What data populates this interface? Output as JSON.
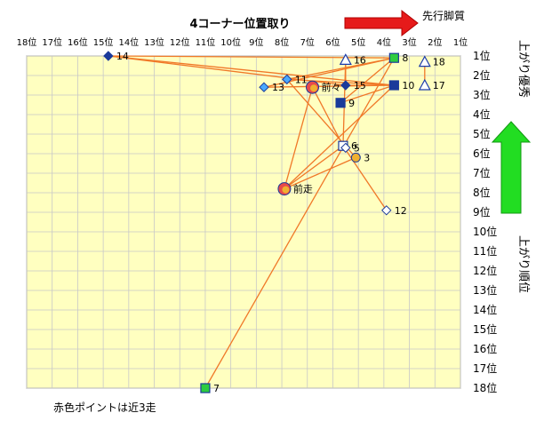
{
  "chart_data": {
    "type": "scatter",
    "title": "4コーナー位置取り",
    "xlabel_top_right": "先行脚質",
    "ylabel_right_top": "上がり優秀",
    "ylabel_right_bottom": "上がり順位",
    "footnote": "赤色ポイントは近3走",
    "x_axis": {
      "tick_labels": [
        "18位",
        "17位",
        "16位",
        "15位",
        "14位",
        "13位",
        "12位",
        "11位",
        "10位",
        "9位",
        "8位",
        "7位",
        "6位",
        "5位",
        "4位",
        "3位",
        "2位",
        "1位"
      ],
      "range": [
        18,
        1
      ],
      "meaning": "4コーナー位置取り順位"
    },
    "y_axis": {
      "tick_labels": [
        "1位",
        "2位",
        "3位",
        "4位",
        "5位",
        "6位",
        "7位",
        "8位",
        "9位",
        "10位",
        "11位",
        "12位",
        "13位",
        "14位",
        "15位",
        "16位",
        "17位",
        "18位"
      ],
      "range": [
        1,
        18
      ],
      "meaning": "上がり順位"
    },
    "grid": true,
    "colors": {
      "plot_bg": "#ffffc0",
      "grid": "#c8c8c8",
      "line": "#f07828",
      "diamond_fill": "#4aa8ff",
      "diamond_dark": "#1a3a9a",
      "square_navy": "#1a3a9a",
      "square_green": "#2ecc40",
      "triangle_stroke": "#1a3aaa",
      "recent_outer": "#e84a4a",
      "recent_inner": "#f0b030",
      "arrow_red": "#e61a1a",
      "arrow_green": "#22dd22"
    },
    "points": [
      {
        "label": "14",
        "x": 14.8,
        "y": 1,
        "shape": "diamond",
        "fill": "#1a3a9a"
      },
      {
        "label": "16",
        "x": 5.5,
        "y": 1.2,
        "shape": "triangle",
        "fill": "none"
      },
      {
        "label": "8",
        "x": 3.6,
        "y": 1.1,
        "shape": "square",
        "fill": "#2ecc40"
      },
      {
        "label": "18",
        "x": 2.4,
        "y": 1.3,
        "shape": "triangle",
        "fill": "none"
      },
      {
        "label": "11",
        "x": 7.8,
        "y": 2.2,
        "shape": "diamond",
        "fill": "#4aa8ff"
      },
      {
        "label": "13",
        "x": 8.7,
        "y": 2.6,
        "shape": "diamond",
        "fill": "#4aa8ff"
      },
      {
        "label": "前々",
        "x": 6.8,
        "y": 2.6,
        "shape": "recent",
        "fill": "#e84a4a"
      },
      {
        "label": "15",
        "x": 5.5,
        "y": 2.5,
        "shape": "diamond",
        "fill": "#1a3a9a"
      },
      {
        "label": "10",
        "x": 3.6,
        "y": 2.5,
        "shape": "square",
        "fill": "#1a3a9a"
      },
      {
        "label": "17",
        "x": 2.4,
        "y": 2.5,
        "shape": "triangle",
        "fill": "none"
      },
      {
        "label": "9",
        "x": 5.7,
        "y": 3.4,
        "shape": "square",
        "fill": "#1a3a9a"
      },
      {
        "label": "6",
        "x": 5.6,
        "y": 5.6,
        "shape": "square",
        "fill": "none"
      },
      {
        "label": "5",
        "x": 5.5,
        "y": 5.7,
        "shape": "diamond",
        "fill": "none"
      },
      {
        "label": "3",
        "x": 5.1,
        "y": 6.2,
        "shape": "circle",
        "fill": "#f0b030"
      },
      {
        "label": "前走",
        "x": 7.9,
        "y": 7.8,
        "shape": "recent",
        "fill": "#e84a4a"
      },
      {
        "label": "12",
        "x": 3.9,
        "y": 8.9,
        "shape": "diamond",
        "fill": "none"
      },
      {
        "label": "7",
        "x": 11.0,
        "y": 18,
        "shape": "square",
        "fill": "#2ecc40"
      }
    ],
    "connections": [
      [
        "14",
        "8"
      ],
      [
        "14",
        "10"
      ],
      [
        "14",
        "15"
      ],
      [
        "16",
        "15"
      ],
      [
        "16",
        "6"
      ],
      [
        "13",
        "8"
      ],
      [
        "13",
        "10"
      ],
      [
        "11",
        "8"
      ],
      [
        "11",
        "10"
      ],
      [
        "11",
        "3"
      ],
      [
        "前々",
        "前走"
      ],
      [
        "前々",
        "6"
      ],
      [
        "前走",
        "6"
      ],
      [
        "前走",
        "3"
      ],
      [
        "前走",
        "10"
      ],
      [
        "15",
        "10"
      ],
      [
        "8",
        "9"
      ],
      [
        "9",
        "10"
      ],
      [
        "12",
        "6"
      ],
      [
        "7",
        "8"
      ],
      [
        "18",
        "17"
      ]
    ]
  }
}
